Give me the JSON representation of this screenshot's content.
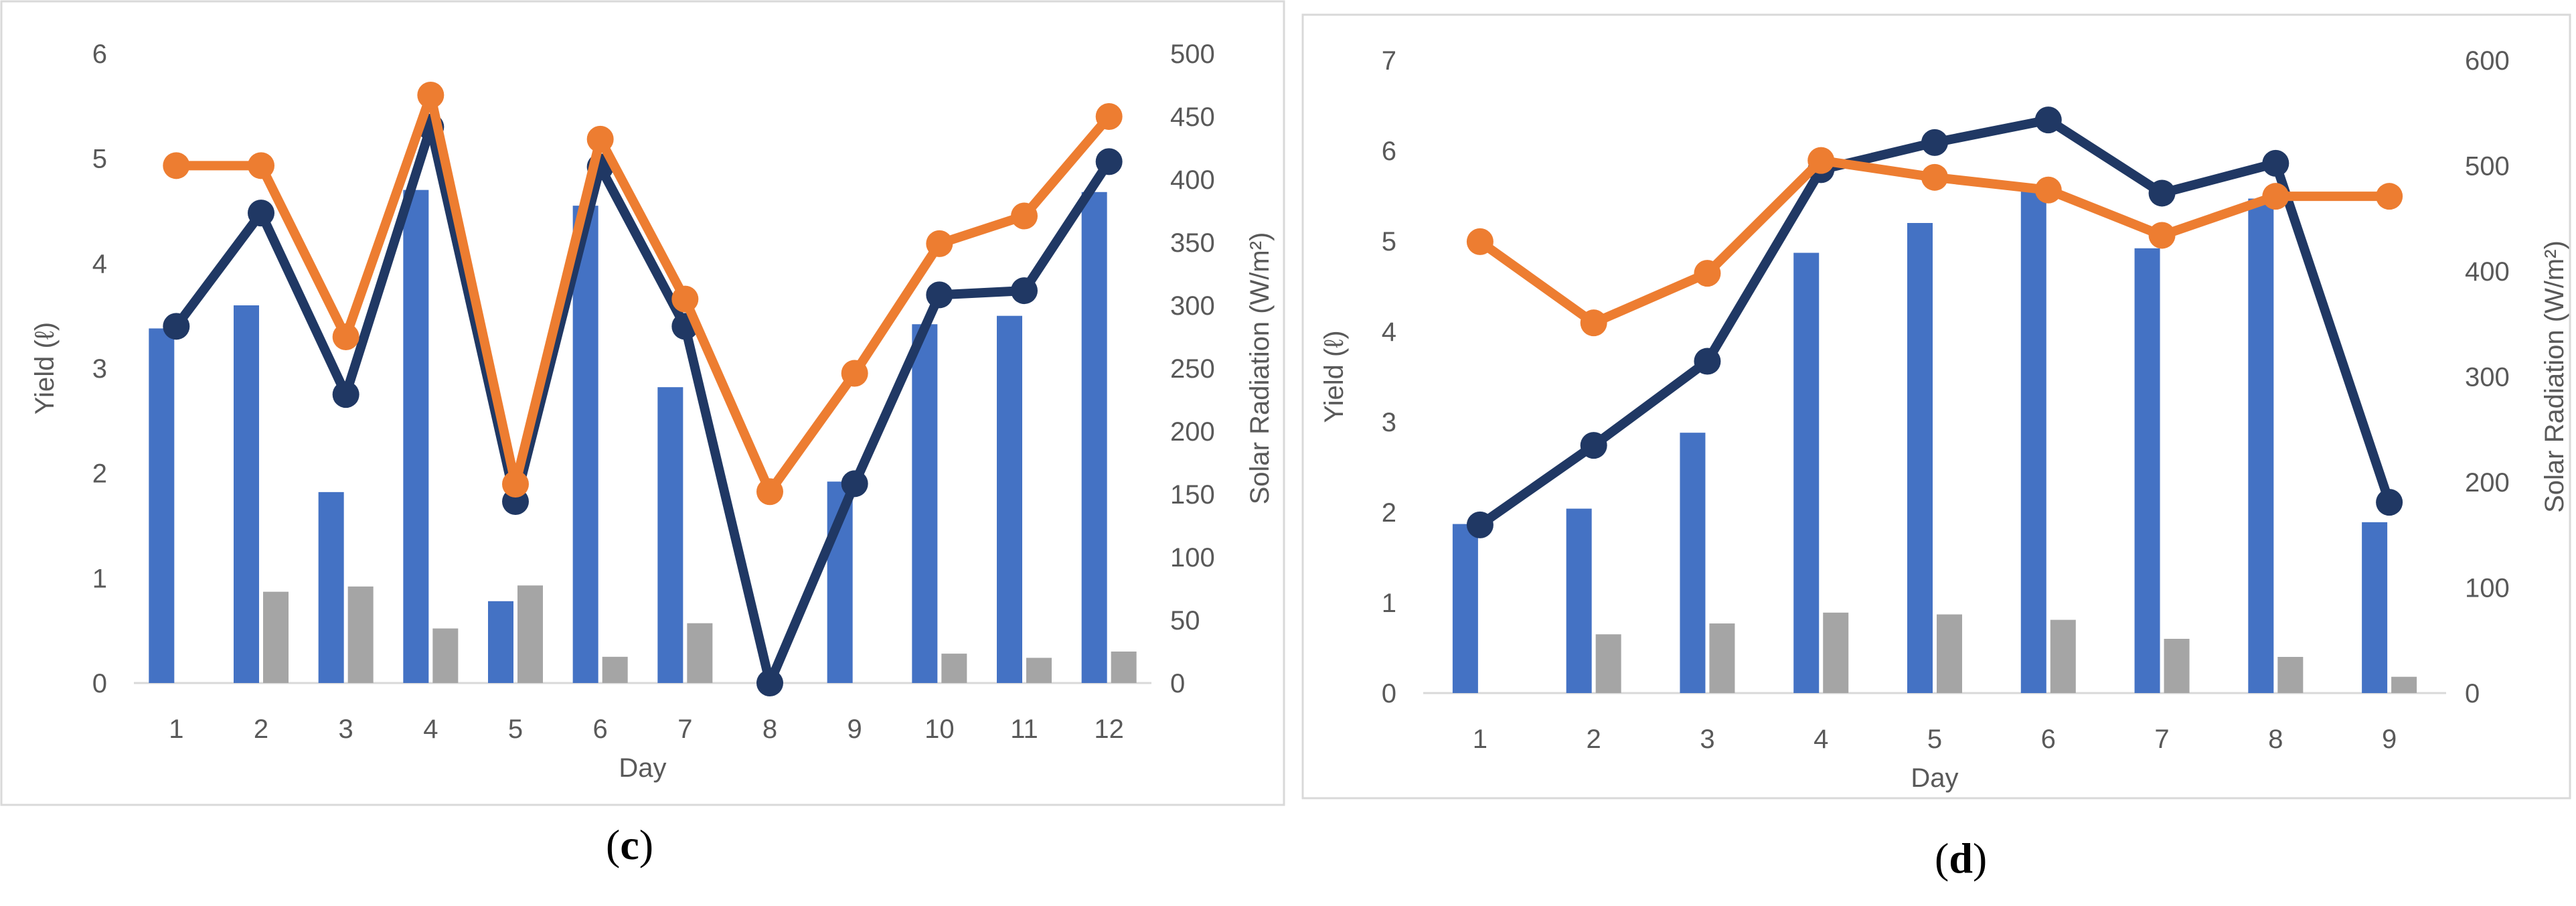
{
  "panels": {
    "c": {
      "prefix": "(",
      "letter": "c",
      "suffix": ")"
    },
    "d": {
      "prefix": "(",
      "letter": "d",
      "suffix": ")"
    }
  },
  "colors": {
    "bar_primary": "#4472C4",
    "bar_secondary": "#A5A5A5",
    "line_dark": "#203864",
    "line_orange": "#ED7D31",
    "axis_text": "#595959",
    "frame": "#D9D9D9"
  },
  "chart_data": [
    {
      "id": "c",
      "type": "bar+line",
      "title": "",
      "xlabel": "Day",
      "ylabel": "Yield (ℓ)",
      "y2label": "Solar Radiation (W/m²)",
      "ylim": [
        0,
        6
      ],
      "y2lim": [
        0,
        500
      ],
      "yticks": [
        "0",
        "1",
        "2",
        "3",
        "4",
        "5",
        "6"
      ],
      "y2ticks": [
        "0",
        "50",
        "100",
        "150",
        "200",
        "250",
        "300",
        "350",
        "400",
        "450",
        "500"
      ],
      "categories": [
        "1",
        "2",
        "3",
        "4",
        "5",
        "6",
        "7",
        "8",
        "9",
        "10",
        "11",
        "12"
      ],
      "series": [
        {
          "kind": "bar",
          "axis": "left",
          "color": "#4472C4",
          "values": [
            3.38,
            3.6,
            1.82,
            4.7,
            0.78,
            4.55,
            2.82,
            null,
            1.92,
            3.42,
            3.5,
            4.68
          ]
        },
        {
          "kind": "bar",
          "axis": "left",
          "color": "#A5A5A5",
          "values": [
            null,
            0.87,
            0.92,
            0.52,
            0.93,
            0.25,
            0.57,
            null,
            null,
            0.28,
            0.24,
            0.3
          ]
        },
        {
          "kind": "line",
          "axis": "left",
          "color": "#203864",
          "values": [
            3.4,
            4.48,
            2.75,
            5.3,
            1.73,
            4.92,
            3.4,
            0.0,
            1.9,
            3.7,
            3.74,
            4.97
          ]
        },
        {
          "kind": "line",
          "axis": "right",
          "color": "#ED7D31",
          "values": [
            411,
            411,
            275,
            467,
            158,
            432,
            305,
            152,
            246,
            349,
            371,
            450
          ]
        }
      ]
    },
    {
      "id": "d",
      "type": "bar+line",
      "title": "",
      "xlabel": "Day",
      "ylabel": "Yield (ℓ)",
      "y2label": "Solar Radiation (W/m²)",
      "ylim": [
        0,
        7
      ],
      "y2lim": [
        0,
        600
      ],
      "yticks": [
        "0",
        "1",
        "2",
        "3",
        "4",
        "5",
        "6",
        "7"
      ],
      "y2ticks": [
        "0",
        "100",
        "200",
        "300",
        "400",
        "500",
        "600"
      ],
      "categories": [
        "1",
        "2",
        "3",
        "4",
        "5",
        "6",
        "7",
        "8",
        "9"
      ],
      "series": [
        {
          "kind": "bar",
          "axis": "left",
          "color": "#4472C4",
          "values": [
            1.87,
            2.04,
            2.88,
            4.87,
            5.2,
            5.57,
            4.92,
            5.47,
            1.89
          ]
        },
        {
          "kind": "bar",
          "axis": "left",
          "color": "#A5A5A5",
          "values": [
            null,
            0.65,
            0.77,
            0.89,
            0.87,
            0.81,
            0.6,
            0.4,
            0.18
          ]
        },
        {
          "kind": "line",
          "axis": "left",
          "color": "#203864",
          "values": [
            1.86,
            2.74,
            3.67,
            5.79,
            6.09,
            6.34,
            5.53,
            5.86,
            2.11
          ]
        },
        {
          "kind": "line",
          "axis": "right",
          "color": "#ED7D31",
          "values": [
            428,
            351,
            398,
            505,
            489,
            477,
            434,
            471,
            471
          ]
        }
      ]
    }
  ]
}
